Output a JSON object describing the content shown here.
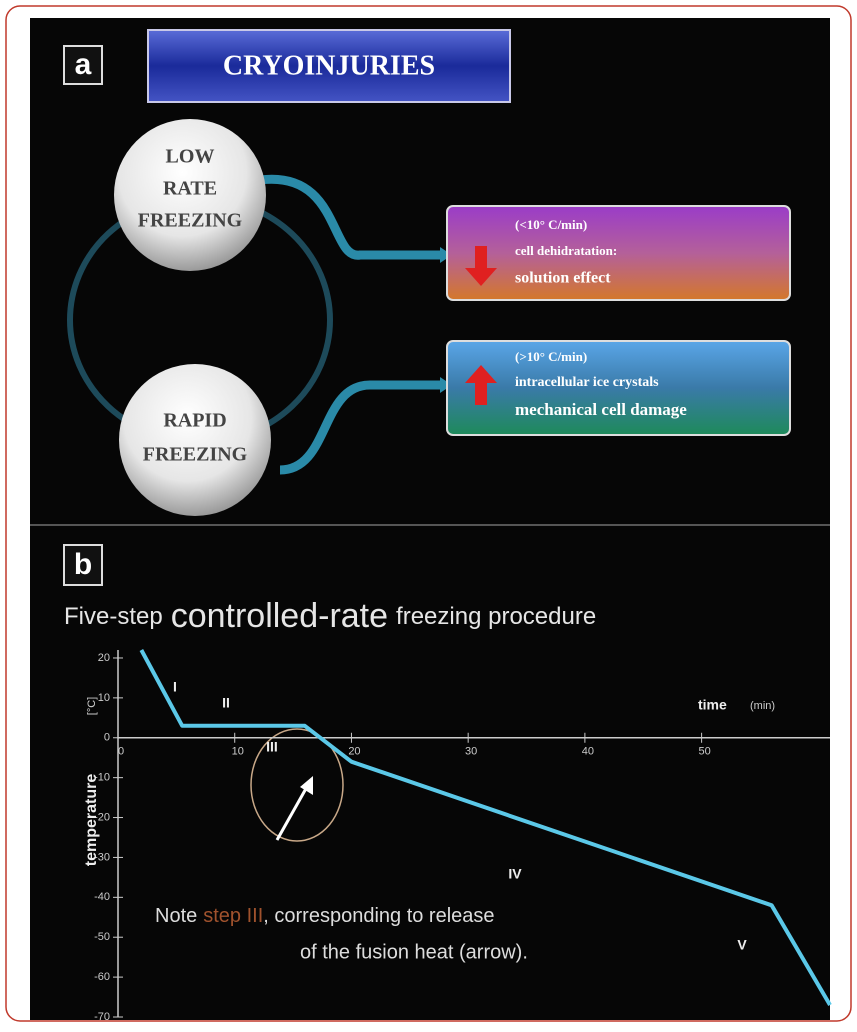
{
  "panel_a": {
    "label": "a",
    "title": "CRYOINJURIES",
    "low_rate": [
      "LOW",
      "RATE",
      "FREEZING"
    ],
    "rapid": [
      "RAPID",
      "FREEZING"
    ],
    "box_low": [
      "(<10° C/min)",
      "cell dehidratation:",
      "solution effect"
    ],
    "box_rapid": [
      "(>10° C/min)",
      "intracellular ice crystals",
      "mechanical cell damage"
    ]
  },
  "chart_data": {
    "type": "line",
    "panel_label": "b",
    "title_parts": [
      "Five-step",
      "controlled-rate",
      "freezing procedure"
    ],
    "x": [
      2,
      5.5,
      16,
      20,
      56,
      61
    ],
    "values": [
      22,
      3,
      3,
      -6,
      -42,
      -67
    ],
    "color": "#5bc8e8",
    "xlim": [
      0,
      61
    ],
    "ylim": [
      -70,
      22
    ],
    "xticks": [
      0,
      10,
      20,
      30,
      40,
      50
    ],
    "yticks": [
      20,
      10,
      0,
      -10,
      -20,
      -30,
      -40,
      -50,
      -60,
      -70
    ],
    "xlabel": "time",
    "xlabel_unit": "(min)",
    "ylabel": "temperature",
    "ylabel_unit": "[°C]",
    "annotations": [
      "I",
      "II",
      "III",
      "IV",
      "V"
    ],
    "note_lines": [
      [
        "Note",
        "step III",
        ", corresponding to release"
      ],
      [
        "of the fusion heat (arrow)."
      ]
    ]
  }
}
